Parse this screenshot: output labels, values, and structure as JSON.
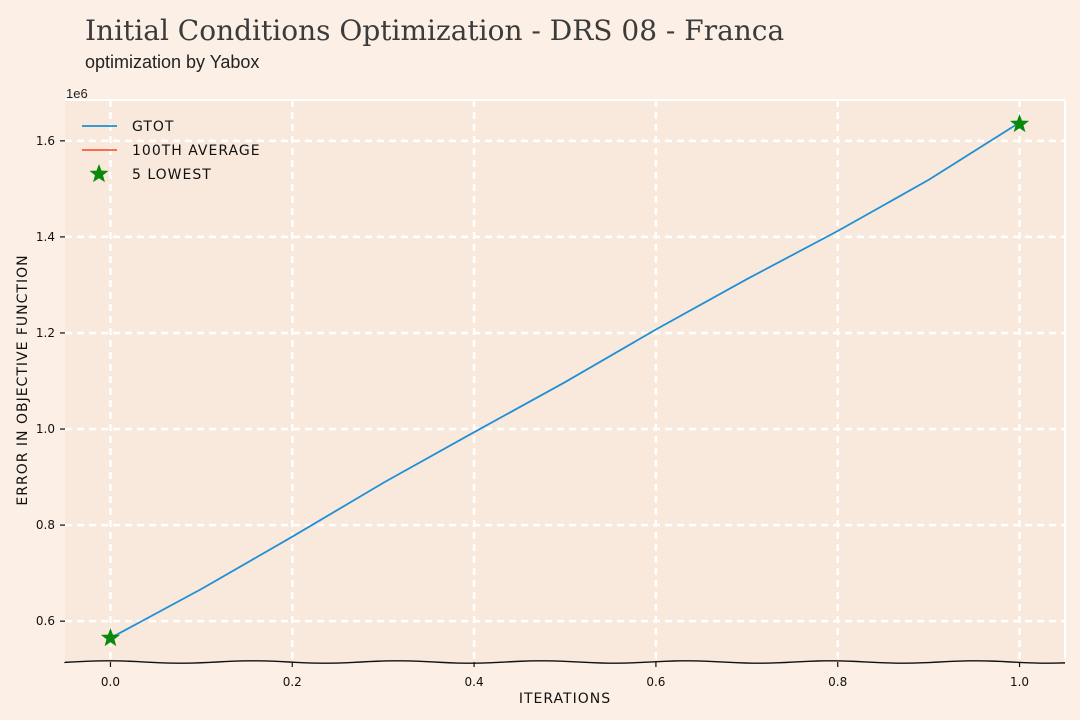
{
  "title": "Initial Conditions Optimization - DRS 08 - Franca",
  "subtitle": "optimization by Yabox",
  "colors": {
    "background": "#fcf0e6",
    "plot_background": "#f9e8dc",
    "grid": "#ffffff",
    "gtot": "#1f8fd6",
    "average": "#ff5a36",
    "lowest": "#0a8a0a"
  },
  "chart_data": {
    "type": "line",
    "xlabel": "ITERATIONS",
    "ylabel": "ERROR IN OBJECTIVE FUNCTION",
    "y_offset_label": "1e6",
    "xlim": [
      -0.05,
      1.05
    ],
    "ylim": [
      515000,
      1685000
    ],
    "x_ticks": [
      0.0,
      0.2,
      0.4,
      0.6,
      0.8,
      1.0
    ],
    "x_tick_labels": [
      "0.0",
      "0.2",
      "0.4",
      "0.6",
      "0.8",
      "1.0"
    ],
    "y_ticks": [
      600000,
      800000,
      1000000,
      1200000,
      1400000,
      1600000
    ],
    "y_tick_labels": [
      "0.6",
      "0.8",
      "1.0",
      "1.2",
      "1.4",
      "1.6"
    ],
    "grid": true,
    "legend_position": "top-left",
    "series": [
      {
        "name": "GTOT",
        "kind": "line",
        "x": [
          0.0,
          0.1,
          0.2,
          0.3,
          0.4,
          0.5,
          0.6,
          0.7,
          0.8,
          0.9,
          1.0
        ],
        "y": [
          565000,
          670000,
          775000,
          885000,
          995000,
          1100000,
          1205000,
          1310000,
          1415000,
          1520000,
          1635000
        ]
      },
      {
        "name": "100TH AVERAGE",
        "kind": "line",
        "x": [],
        "y": []
      },
      {
        "name": "5 LOWEST",
        "kind": "scatter",
        "marker": "star",
        "x": [
          0.0,
          1.0
        ],
        "y": [
          565000,
          1635000
        ]
      }
    ]
  }
}
